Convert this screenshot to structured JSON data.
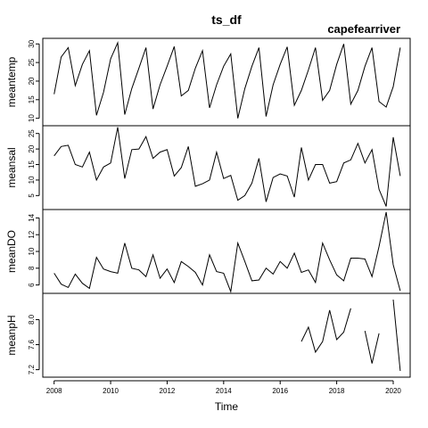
{
  "chart_data": {
    "type": "line",
    "title": "ts_df",
    "subtitle": "capefearriver",
    "xlabel": "Time",
    "xlim": [
      2007.6,
      2020.6
    ],
    "x_ticks": [
      "2008",
      "2010",
      "2012",
      "2014",
      "2016",
      "2018",
      "2020"
    ],
    "x_tick_values": [
      2008,
      2010,
      2012,
      2014,
      2016,
      2018,
      2020
    ],
    "panels": [
      {
        "name": "meantemp",
        "ylim": [
          8,
          31.5
        ],
        "ticks": [
          10,
          15,
          20,
          25,
          30
        ],
        "tick_labels": [
          "10",
          "15",
          "20",
          "25",
          "30"
        ],
        "points": [
          [
            2008.0,
            16.5
          ],
          [
            2008.25,
            26.5
          ],
          [
            2008.5,
            29.0
          ],
          [
            2008.75,
            18.8
          ],
          [
            2009.0,
            24.5
          ],
          [
            2009.25,
            28.2
          ],
          [
            2009.5,
            10.8
          ],
          [
            2009.75,
            17.0
          ],
          [
            2010.0,
            26.0
          ],
          [
            2010.25,
            30.3
          ],
          [
            2010.5,
            11.0
          ],
          [
            2010.75,
            18.0
          ],
          [
            2011.0,
            23.5
          ],
          [
            2011.25,
            29.0
          ],
          [
            2011.5,
            12.5
          ],
          [
            2011.75,
            19.0
          ],
          [
            2012.0,
            24.0
          ],
          [
            2012.25,
            29.3
          ],
          [
            2012.5,
            16.0
          ],
          [
            2012.75,
            17.5
          ],
          [
            2013.0,
            23.5
          ],
          [
            2013.25,
            28.2
          ],
          [
            2013.5,
            12.8
          ],
          [
            2013.75,
            19.0
          ],
          [
            2014.0,
            24.0
          ],
          [
            2014.25,
            27.3
          ],
          [
            2014.5,
            10.0
          ],
          [
            2014.75,
            18.0
          ],
          [
            2015.0,
            24.0
          ],
          [
            2015.25,
            29.0
          ],
          [
            2015.5,
            10.5
          ],
          [
            2015.75,
            19.0
          ],
          [
            2016.0,
            24.5
          ],
          [
            2016.25,
            29.2
          ],
          [
            2016.5,
            13.5
          ],
          [
            2016.75,
            17.5
          ],
          [
            2017.0,
            23.0
          ],
          [
            2017.25,
            29.0
          ],
          [
            2017.5,
            14.8
          ],
          [
            2017.75,
            17.5
          ],
          [
            2018.0,
            24.5
          ],
          [
            2018.25,
            30.0
          ],
          [
            2018.5,
            13.8
          ],
          [
            2018.75,
            17.5
          ],
          [
            2019.0,
            24.0
          ],
          [
            2019.25,
            29.0
          ],
          [
            2019.5,
            14.5
          ],
          [
            2019.75,
            13.0
          ],
          [
            2020.0,
            18.5
          ],
          [
            2020.25,
            29.0
          ]
        ]
      },
      {
        "name": "meansal",
        "ylim": [
          0.5,
          27.5
        ],
        "ticks": [
          5,
          10,
          15,
          20,
          25
        ],
        "tick_labels": [
          "5",
          "10",
          "15",
          "20",
          "25"
        ],
        "points": [
          [
            2008.0,
            17.8
          ],
          [
            2008.25,
            20.8
          ],
          [
            2008.5,
            21.2
          ],
          [
            2008.75,
            15.0
          ],
          [
            2009.0,
            14.2
          ],
          [
            2009.25,
            19.0
          ],
          [
            2009.5,
            10.0
          ],
          [
            2009.75,
            14.2
          ],
          [
            2010.0,
            15.5
          ],
          [
            2010.25,
            27.0
          ],
          [
            2010.5,
            10.5
          ],
          [
            2010.75,
            19.8
          ],
          [
            2011.0,
            20.0
          ],
          [
            2011.25,
            24.0
          ],
          [
            2011.5,
            17.0
          ],
          [
            2011.75,
            19.0
          ],
          [
            2012.0,
            19.8
          ],
          [
            2012.25,
            11.3
          ],
          [
            2012.5,
            14.0
          ],
          [
            2012.75,
            20.8
          ],
          [
            2013.0,
            8.0
          ],
          [
            2013.25,
            8.8
          ],
          [
            2013.5,
            10.0
          ],
          [
            2013.75,
            19.0
          ],
          [
            2014.0,
            10.5
          ],
          [
            2014.25,
            11.5
          ],
          [
            2014.5,
            3.5
          ],
          [
            2014.75,
            5.0
          ],
          [
            2015.0,
            9.0
          ],
          [
            2015.25,
            17.0
          ],
          [
            2015.5,
            3.0
          ],
          [
            2015.75,
            10.8
          ],
          [
            2016.0,
            12.0
          ],
          [
            2016.25,
            11.3
          ],
          [
            2016.5,
            4.5
          ],
          [
            2016.75,
            20.5
          ],
          [
            2017.0,
            10.0
          ],
          [
            2017.25,
            15.0
          ],
          [
            2017.5,
            15.0
          ],
          [
            2017.75,
            9.0
          ],
          [
            2018.0,
            9.5
          ],
          [
            2018.25,
            15.5
          ],
          [
            2018.5,
            16.5
          ],
          [
            2018.75,
            21.8
          ],
          [
            2019.0,
            15.5
          ],
          [
            2019.25,
            19.8
          ],
          [
            2019.5,
            7.0
          ],
          [
            2019.75,
            1.5
          ],
          [
            2020.0,
            23.8
          ],
          [
            2020.25,
            11.3
          ]
        ]
      },
      {
        "name": "meanDO",
        "ylim": [
          5.0,
          15.0
        ],
        "ticks": [
          6,
          8,
          10,
          12,
          14
        ],
        "tick_labels": [
          "6",
          "8",
          "10",
          "12",
          "14"
        ],
        "points": [
          [
            2008.0,
            7.4
          ],
          [
            2008.25,
            6.1
          ],
          [
            2008.5,
            5.7
          ],
          [
            2008.75,
            7.3
          ],
          [
            2009.0,
            6.2
          ],
          [
            2009.25,
            5.6
          ],
          [
            2009.5,
            9.3
          ],
          [
            2009.75,
            7.9
          ],
          [
            2010.0,
            7.6
          ],
          [
            2010.25,
            7.4
          ],
          [
            2010.5,
            11.0
          ],
          [
            2010.75,
            8.0
          ],
          [
            2011.0,
            7.8
          ],
          [
            2011.25,
            7.0
          ],
          [
            2011.5,
            9.6
          ],
          [
            2011.75,
            6.8
          ],
          [
            2012.0,
            7.9
          ],
          [
            2012.25,
            6.3
          ],
          [
            2012.5,
            8.8
          ],
          [
            2012.75,
            8.2
          ],
          [
            2013.0,
            7.5
          ],
          [
            2013.25,
            6.0
          ],
          [
            2013.5,
            9.6
          ],
          [
            2013.75,
            7.6
          ],
          [
            2014.0,
            7.4
          ],
          [
            2014.25,
            5.2
          ],
          [
            2014.5,
            11.0
          ],
          [
            2014.75,
            8.8
          ],
          [
            2015.0,
            6.5
          ],
          [
            2015.25,
            6.6
          ],
          [
            2015.5,
            8.0
          ],
          [
            2015.75,
            7.3
          ],
          [
            2016.0,
            8.8
          ],
          [
            2016.25,
            8.0
          ],
          [
            2016.5,
            9.8
          ],
          [
            2016.75,
            7.5
          ],
          [
            2017.0,
            7.8
          ],
          [
            2017.25,
            6.3
          ],
          [
            2017.5,
            11.0
          ],
          [
            2017.75,
            9.0
          ],
          [
            2018.0,
            7.2
          ],
          [
            2018.25,
            6.5
          ],
          [
            2018.5,
            9.2
          ],
          [
            2018.75,
            9.2
          ],
          [
            2019.0,
            9.1
          ],
          [
            2019.25,
            7.0
          ],
          [
            2019.5,
            10.6
          ],
          [
            2019.75,
            14.7
          ],
          [
            2020.0,
            8.4
          ],
          [
            2020.25,
            5.3
          ]
        ]
      },
      {
        "name": "meanpH",
        "ylim": [
          7.08,
          8.42
        ],
        "ticks": [
          7.2,
          7.6,
          8.0
        ],
        "tick_labels": [
          "7.2",
          "7.6",
          "8.0"
        ],
        "segments": [
          [
            [
              2016.75,
              7.65
            ],
            [
              2017.0,
              7.88
            ],
            [
              2017.25,
              7.48
            ],
            [
              2017.5,
              7.65
            ],
            [
              2017.75,
              8.15
            ],
            [
              2018.0,
              7.68
            ],
            [
              2018.25,
              7.8
            ],
            [
              2018.5,
              8.18
            ]
          ],
          [
            [
              2019.0,
              7.82
            ],
            [
              2019.25,
              7.3
            ],
            [
              2019.5,
              7.78
            ]
          ],
          [
            [
              2020.0,
              8.32
            ],
            [
              2020.25,
              7.18
            ]
          ]
        ]
      }
    ]
  }
}
